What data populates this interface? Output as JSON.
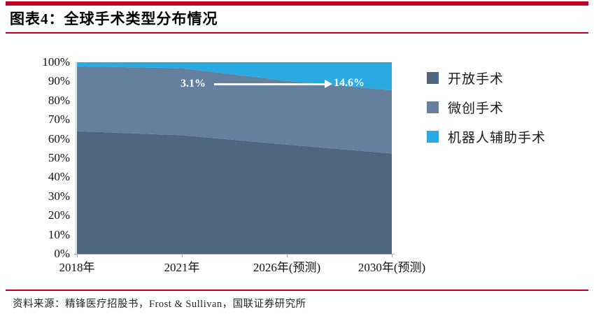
{
  "figure": {
    "title": "图表4：全球手术类型分布情况",
    "source": "资料来源：精锋医疗招股书，Frost & Sullivan，国联证券研究所",
    "accent_color": "#c00027"
  },
  "chart_data": {
    "type": "area",
    "stacked": true,
    "stack_unit": "percent",
    "title": "全球手术类型分布情况",
    "categories": [
      "2018年",
      "2021年",
      "2026年(预测)",
      "2030年(预测)"
    ],
    "series": [
      {
        "name": "开放手术",
        "color": "#4f6580",
        "values": [
          64.0,
          61.9,
          57.0,
          52.4
        ]
      },
      {
        "name": "微创手术",
        "color": "#64809e",
        "values": [
          33.9,
          35.0,
          33.3,
          33.0
        ]
      },
      {
        "name": "机器人辅助手术",
        "color": "#29aae1",
        "values": [
          2.1,
          3.1,
          9.7,
          14.6
        ]
      }
    ],
    "ylim": [
      0,
      100
    ],
    "y_ticks": [
      "100%",
      "90%",
      "80%",
      "70%",
      "60%",
      "50%",
      "40%",
      "30%",
      "20%",
      "10%",
      "0%"
    ],
    "grid": false,
    "legend_position": "right",
    "annotation": {
      "start_label": "3.1%",
      "end_label": "14.6%",
      "meaning": "机器人辅助手术占比由3.1%(2021年)升至14.6%(2030年预测)",
      "color": "#ffffff"
    }
  }
}
